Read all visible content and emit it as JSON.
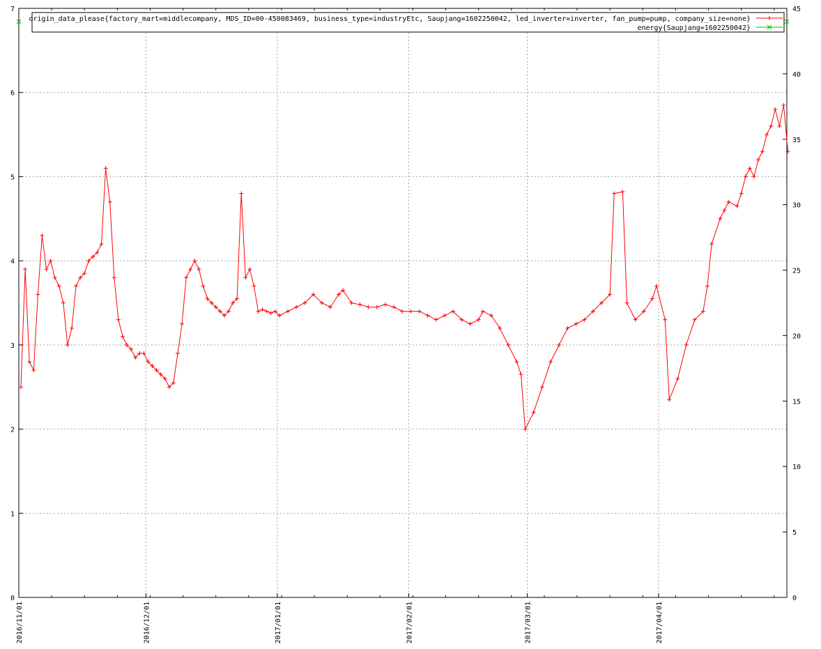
{
  "chart_data": {
    "type": "line",
    "title": "",
    "xlabel": "",
    "ylabel": "",
    "y2label": "",
    "grid": true,
    "legend_position": "top-right",
    "x_range": [
      "2016-11-01",
      "2017-04-30"
    ],
    "ylim": [
      0,
      7
    ],
    "y2lim": [
      0,
      45
    ],
    "x_ticks": [
      "2016/11/01",
      "2016/12/01",
      "2017/01/01",
      "2017/02/01",
      "2017/03/01",
      "2017/04/01"
    ],
    "y_ticks": [
      "0",
      "1",
      "2",
      "3",
      "4",
      "5",
      "6",
      "7"
    ],
    "y2_ticks": [
      "0",
      "5",
      "10",
      "15",
      "20",
      "25",
      "30",
      "35",
      "40",
      "45"
    ],
    "colors": {
      "series1": "#ff0000",
      "series2": "#00c000",
      "grid": "#a0a0a0"
    },
    "series": [
      {
        "name": "origin_data_please{factory_mart=middlecompany, MDS_ID=00-450083469, business_type=industryEtc, Saupjang=1602250042, led_inverter=inverter, fan_pump=pump, company_size=none}",
        "marker": "plus",
        "color": "#ff0000",
        "axis": "left",
        "points": [
          [
            "2016-11-01",
            2.5
          ],
          [
            "2016-11-02",
            3.9
          ],
          [
            "2016-11-03",
            2.8
          ],
          [
            "2016-11-04",
            2.7
          ],
          [
            "2016-11-05",
            3.6
          ],
          [
            "2016-11-06",
            4.3
          ],
          [
            "2016-11-07",
            3.9
          ],
          [
            "2016-11-08",
            4.0
          ],
          [
            "2016-11-09",
            3.8
          ],
          [
            "2016-11-10",
            3.7
          ],
          [
            "2016-11-11",
            3.5
          ],
          [
            "2016-11-12",
            3.0
          ],
          [
            "2016-11-13",
            3.2
          ],
          [
            "2016-11-14",
            3.7
          ],
          [
            "2016-11-15",
            3.8
          ],
          [
            "2016-11-16",
            3.85
          ],
          [
            "2016-11-17",
            4.0
          ],
          [
            "2016-11-18",
            4.05
          ],
          [
            "2016-11-19",
            4.1
          ],
          [
            "2016-11-20",
            4.2
          ],
          [
            "2016-11-21",
            5.1
          ],
          [
            "2016-11-22",
            4.7
          ],
          [
            "2016-11-23",
            3.8
          ],
          [
            "2016-11-24",
            3.3
          ],
          [
            "2016-11-25",
            3.1
          ],
          [
            "2016-11-26",
            3.0
          ],
          [
            "2016-11-27",
            2.95
          ],
          [
            "2016-11-28",
            2.85
          ],
          [
            "2016-11-29",
            2.9
          ],
          [
            "2016-11-30",
            2.9
          ],
          [
            "2016-12-01",
            2.8
          ],
          [
            "2016-12-02",
            2.75
          ],
          [
            "2016-12-03",
            2.7
          ],
          [
            "2016-12-04",
            2.65
          ],
          [
            "2016-12-05",
            2.6
          ],
          [
            "2016-12-06",
            2.5
          ],
          [
            "2016-12-07",
            2.55
          ],
          [
            "2016-12-08",
            2.9
          ],
          [
            "2016-12-09",
            3.25
          ],
          [
            "2016-12-10",
            3.8
          ],
          [
            "2016-12-11",
            3.9
          ],
          [
            "2016-12-12",
            4.0
          ],
          [
            "2016-12-13",
            3.9
          ],
          [
            "2016-12-14",
            3.7
          ],
          [
            "2016-12-15",
            3.55
          ],
          [
            "2016-12-16",
            3.5
          ],
          [
            "2016-12-17",
            3.45
          ],
          [
            "2016-12-18",
            3.4
          ],
          [
            "2016-12-19",
            3.35
          ],
          [
            "2016-12-20",
            3.4
          ],
          [
            "2016-12-21",
            3.5
          ],
          [
            "2016-12-22",
            3.55
          ],
          [
            "2016-12-23",
            4.8
          ],
          [
            "2016-12-24",
            3.8
          ],
          [
            "2016-12-25",
            3.9
          ],
          [
            "2016-12-26",
            3.7
          ],
          [
            "2016-12-27",
            3.4
          ],
          [
            "2016-12-28",
            3.42
          ],
          [
            "2016-12-29",
            3.4
          ],
          [
            "2016-12-30",
            3.38
          ],
          [
            "2016-12-31",
            3.4
          ],
          [
            "2017-01-01",
            3.35
          ],
          [
            "2017-01-03",
            3.4
          ],
          [
            "2017-01-05",
            3.45
          ],
          [
            "2017-01-07",
            3.5
          ],
          [
            "2017-01-09",
            3.6
          ],
          [
            "2017-01-11",
            3.5
          ],
          [
            "2017-01-13",
            3.45
          ],
          [
            "2017-01-15",
            3.6
          ],
          [
            "2017-01-16",
            3.65
          ],
          [
            "2017-01-18",
            3.5
          ],
          [
            "2017-01-20",
            3.48
          ],
          [
            "2017-01-22",
            3.45
          ],
          [
            "2017-01-24",
            3.45
          ],
          [
            "2017-01-26",
            3.48
          ],
          [
            "2017-01-28",
            3.45
          ],
          [
            "2017-01-30",
            3.4
          ],
          [
            "2017-02-01",
            3.4
          ],
          [
            "2017-02-03",
            3.4
          ],
          [
            "2017-02-05",
            3.35
          ],
          [
            "2017-02-07",
            3.3
          ],
          [
            "2017-02-09",
            3.35
          ],
          [
            "2017-02-11",
            3.4
          ],
          [
            "2017-02-13",
            3.3
          ],
          [
            "2017-02-15",
            3.25
          ],
          [
            "2017-02-17",
            3.3
          ],
          [
            "2017-02-18",
            3.4
          ],
          [
            "2017-02-20",
            3.35
          ],
          [
            "2017-02-22",
            3.2
          ],
          [
            "2017-02-24",
            3.0
          ],
          [
            "2017-02-26",
            2.8
          ],
          [
            "2017-02-27",
            2.65
          ],
          [
            "2017-02-28",
            2.0
          ],
          [
            "2017-03-02",
            2.2
          ],
          [
            "2017-03-04",
            2.5
          ],
          [
            "2017-03-06",
            2.8
          ],
          [
            "2017-03-08",
            3.0
          ],
          [
            "2017-03-10",
            3.2
          ],
          [
            "2017-03-12",
            3.25
          ],
          [
            "2017-03-14",
            3.3
          ],
          [
            "2017-03-16",
            3.4
          ],
          [
            "2017-03-18",
            3.5
          ],
          [
            "2017-03-20",
            3.6
          ],
          [
            "2017-03-21",
            4.8
          ],
          [
            "2017-03-23",
            4.82
          ],
          [
            "2017-03-24",
            3.5
          ],
          [
            "2017-03-26",
            3.3
          ],
          [
            "2017-03-28",
            3.4
          ],
          [
            "2017-03-30",
            3.55
          ],
          [
            "2017-03-31",
            3.7
          ],
          [
            "2017-04-02",
            3.3
          ],
          [
            "2017-04-03",
            2.35
          ],
          [
            "2017-04-05",
            2.6
          ],
          [
            "2017-04-07",
            3.0
          ],
          [
            "2017-04-09",
            3.3
          ],
          [
            "2017-04-11",
            3.4
          ],
          [
            "2017-04-12",
            3.7
          ],
          [
            "2017-04-13",
            4.2
          ],
          [
            "2017-04-15",
            4.5
          ],
          [
            "2017-04-16",
            4.6
          ],
          [
            "2017-04-17",
            4.7
          ],
          [
            "2017-04-19",
            4.65
          ],
          [
            "2017-04-20",
            4.8
          ],
          [
            "2017-04-21",
            5.0
          ],
          [
            "2017-04-22",
            5.1
          ],
          [
            "2017-04-23",
            5.0
          ],
          [
            "2017-04-24",
            5.2
          ],
          [
            "2017-04-25",
            5.3
          ],
          [
            "2017-04-26",
            5.5
          ],
          [
            "2017-04-27",
            5.6
          ],
          [
            "2017-04-28",
            5.8
          ],
          [
            "2017-04-29",
            5.6
          ],
          [
            "2017-04-30",
            5.85
          ],
          [
            "2017-05-01",
            5.3
          ]
        ]
      },
      {
        "name": "energy{Saupjang=1602250042}",
        "marker": "x",
        "color": "#00c000",
        "axis": "left",
        "points": []
      }
    ]
  }
}
